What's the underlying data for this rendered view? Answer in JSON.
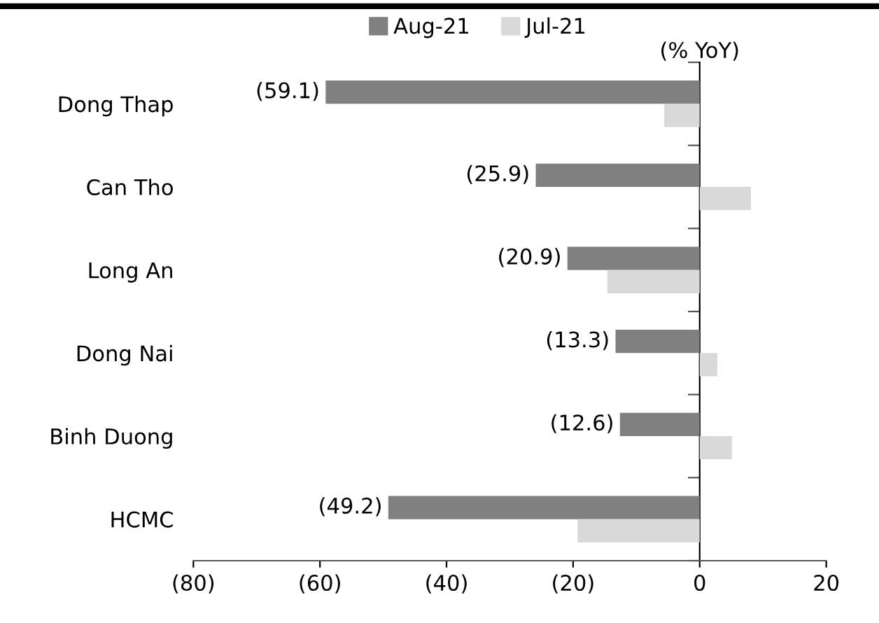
{
  "chart_data": {
    "type": "bar",
    "orientation": "horizontal",
    "categories": [
      "Dong Thap",
      "Can Tho",
      "Long An",
      "Dong Nai",
      "Binh Duong",
      "HCMC"
    ],
    "series": [
      {
        "name": "Aug-21",
        "color": "#808080",
        "values": [
          -59.1,
          -25.9,
          -20.9,
          -13.3,
          -12.6,
          -49.2
        ],
        "value_labels": [
          "(59.1)",
          "(25.9)",
          "(20.9)",
          "(13.3)",
          "(12.6)",
          "(49.2)"
        ]
      },
      {
        "name": "Jul-21",
        "color": "#d9d9d9",
        "values": [
          -5.6,
          8.1,
          -14.6,
          2.8,
          5.1,
          -19.3
        ]
      }
    ],
    "xlim": [
      -80,
      20
    ],
    "xticks": [
      {
        "value": -80,
        "label": "(80)"
      },
      {
        "value": -60,
        "label": "(60)"
      },
      {
        "value": -40,
        "label": "(40)"
      },
      {
        "value": -20,
        "label": "(20)"
      },
      0,
      20
    ],
    "annotations": [
      "(% YoY)"
    ],
    "legend": "top"
  }
}
